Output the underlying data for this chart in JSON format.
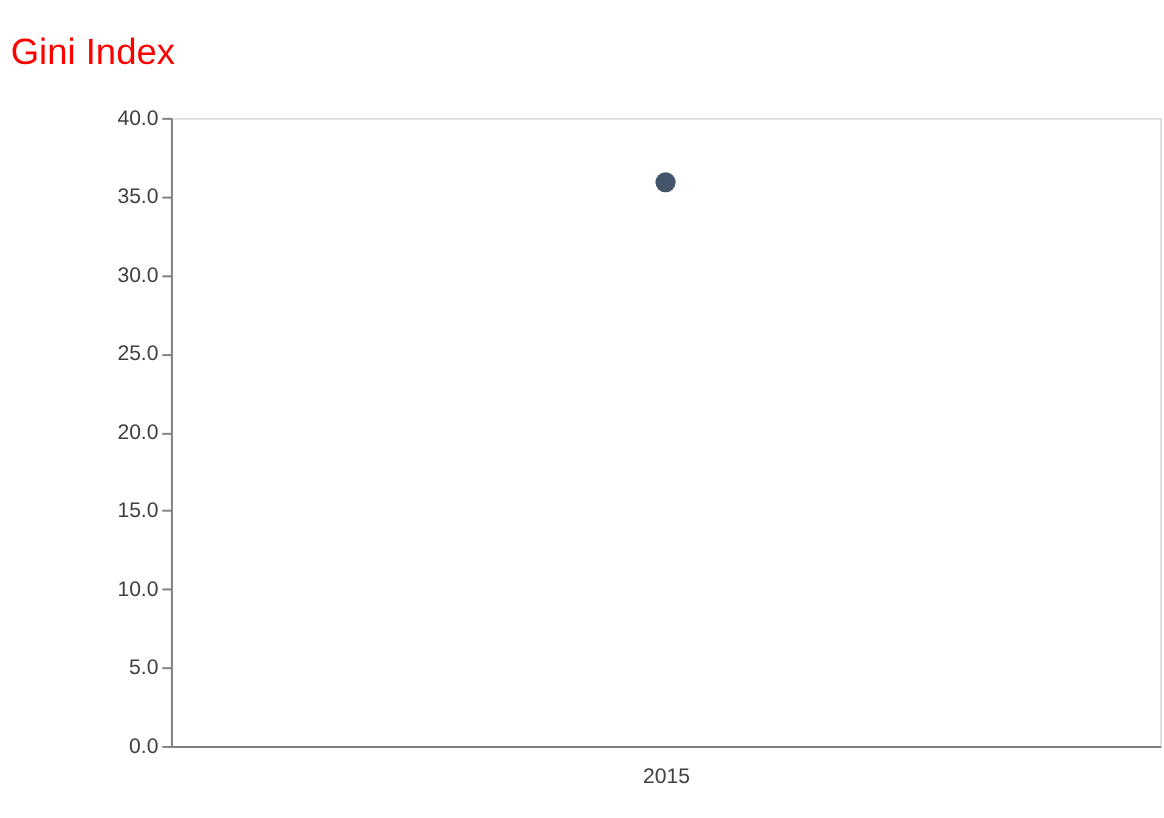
{
  "chart_data": {
    "type": "scatter",
    "title": "Gini Index",
    "categories": [
      "2015"
    ],
    "series": [
      {
        "color": "#44546a",
        "values": [
          35.9
        ]
      }
    ],
    "marker": "circle",
    "ylim": [
      0,
      40
    ],
    "yticks": [
      {
        "value": 0,
        "label": "0.0"
      },
      {
        "value": 5,
        "label": "5.0"
      },
      {
        "value": 10,
        "label": "10.0"
      },
      {
        "value": 15,
        "label": "15.0"
      },
      {
        "value": 20,
        "label": "20.0"
      },
      {
        "value": 25,
        "label": "25.0"
      },
      {
        "value": 30,
        "label": "30.0"
      },
      {
        "value": 35,
        "label": "35.0"
      },
      {
        "value": 40,
        "label": "40.0"
      }
    ],
    "grid": false
  }
}
